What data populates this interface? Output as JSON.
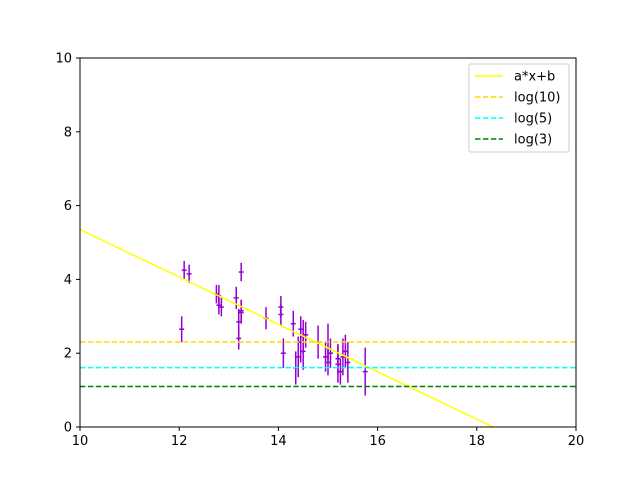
{
  "chart_data": {
    "type": "scatter",
    "xlim": [
      10,
      20
    ],
    "ylim": [
      0,
      10
    ],
    "xticks": [
      "10",
      "12",
      "14",
      "16",
      "18",
      "20"
    ],
    "yticks": [
      "0",
      "2",
      "4",
      "6",
      "8",
      "10"
    ],
    "grid": false,
    "legend_position": "top-right",
    "legend": [
      "a*x+b",
      "log(10)",
      "log(5)",
      "log(3)"
    ],
    "lines": [
      {
        "name": "a*x+b",
        "color": "#ffff00",
        "style": "solid",
        "x": [
          10,
          18.33
        ],
        "y": [
          5.35,
          0
        ]
      },
      {
        "name": "log(10)",
        "color": "#ffd700",
        "style": "dashed",
        "y": 2.3026
      },
      {
        "name": "log(5)",
        "color": "#00ffff",
        "style": "dashed",
        "y": 1.6094
      },
      {
        "name": "log(3)",
        "color": "#008000",
        "style": "dashed",
        "y": 1.0986
      }
    ],
    "points": {
      "color": "#9400d3",
      "xerr": 0.05,
      "x": [
        12.05,
        12.1,
        12.2,
        12.8,
        12.8,
        12.85,
        13.15,
        13.2,
        13.2,
        13.25,
        13.25,
        13.25,
        13.75,
        14.05,
        14.05,
        14.1,
        14.3,
        14.35,
        14.4,
        14.45,
        14.45,
        14.5,
        14.5,
        14.55,
        14.8,
        14.95,
        15.0,
        15.0,
        15.05,
        15.2,
        15.2,
        15.25,
        15.3,
        15.35,
        15.4,
        15.75,
        12.75
      ],
      "y": [
        2.65,
        4.25,
        4.15,
        3.3,
        3.55,
        3.25,
        3.5,
        2.85,
        2.4,
        3.15,
        3.1,
        4.2,
        2.95,
        3.25,
        3.05,
        2.0,
        2.8,
        1.6,
        1.9,
        2.65,
        2.3,
        2.45,
        2.05,
        2.5,
        2.3,
        1.9,
        2.3,
        1.75,
        2.0,
        1.85,
        1.7,
        1.5,
        1.9,
        2.05,
        1.75,
        1.5,
        3.6
      ],
      "yerr": [
        0.35,
        0.25,
        0.25,
        0.25,
        0.3,
        0.25,
        0.3,
        0.35,
        0.3,
        0.3,
        0.3,
        0.25,
        0.3,
        0.3,
        0.3,
        0.4,
        0.35,
        0.45,
        0.55,
        0.35,
        0.55,
        0.45,
        0.5,
        0.35,
        0.45,
        0.4,
        0.5,
        0.35,
        0.4,
        0.4,
        0.5,
        0.35,
        0.5,
        0.45,
        0.55,
        0.65,
        0.25
      ]
    }
  }
}
